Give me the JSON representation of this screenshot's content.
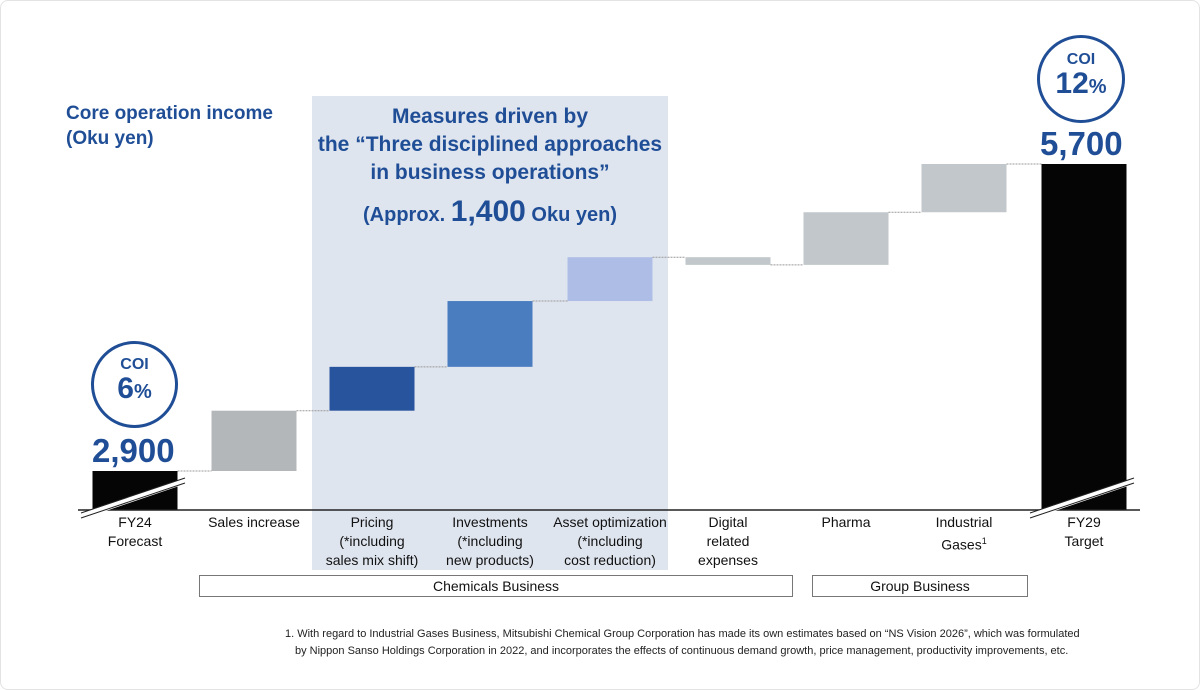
{
  "header": {
    "title_line1": "Core operation income",
    "title_line2": "(Oku yen)"
  },
  "callout": {
    "line1": "Measures driven by",
    "line2": "the “Three disciplined approaches",
    "line3": "in business operations”",
    "approx_prefix": "(Approx. ",
    "approx_value": "1,400",
    "approx_suffix": " Oku yen)"
  },
  "coi_start": {
    "label": "COI",
    "value": "6",
    "unit": "%"
  },
  "coi_end": {
    "label": "COI",
    "value": "12",
    "unit": "%"
  },
  "totals": {
    "start": "2,900",
    "end": "5,700"
  },
  "groups": {
    "chemicals": "Chemicals Business",
    "group": "Group Business"
  },
  "categories": [
    {
      "l1": "FY24",
      "l2": "Forecast"
    },
    {
      "l1": "Sales increase"
    },
    {
      "l1": "Pricing",
      "l2": "(*including",
      "l3": "sales mix shift)"
    },
    {
      "l1": "Investments",
      "l2": "(*including",
      "l3": "new products)"
    },
    {
      "l1": "Asset optimization",
      "l2": "(*including",
      "l3": "cost reduction)"
    },
    {
      "l1": "Digital",
      "l2": "related",
      "l3": "expenses"
    },
    {
      "l1": "Pharma"
    },
    {
      "l1": "Industrial",
      "l2": "Gases",
      "sup": "1"
    },
    {
      "l1": "FY29",
      "l2": "Target"
    }
  ],
  "footnote": {
    "line1": "1. With regard to Industrial Gases Business, Mitsubishi Chemical Group Corporation has made its own estimates based on “NS Vision 2026”, which was formulated",
    "line2": "by Nippon Sanso Holdings Corporation in 2022, and incorporates the effects of continuous demand growth, price management, productivity improvements, etc."
  },
  "chart_data": {
    "type": "waterfall",
    "categories": [
      "FY24 Forecast",
      "Sales increase",
      "Pricing",
      "Investments",
      "Asset optimization",
      "Digital related expenses",
      "Pharma",
      "Industrial Gases",
      "FY29 Target"
    ],
    "values": [
      2900,
      550,
      400,
      600,
      400,
      -70,
      480,
      440,
      5700
    ],
    "kinds": [
      "total",
      "delta",
      "delta",
      "delta",
      "delta",
      "delta",
      "delta",
      "delta",
      "total"
    ],
    "colors": [
      "#050505",
      "#b4b7b9",
      "#27549d",
      "#4a7cc0",
      "#aebde6",
      "#c1c7ca",
      "#c1c7ca",
      "#c1c7ca",
      "#050505"
    ],
    "ylabel": "Core operation income (Oku yen)",
    "axis_break": true
  }
}
